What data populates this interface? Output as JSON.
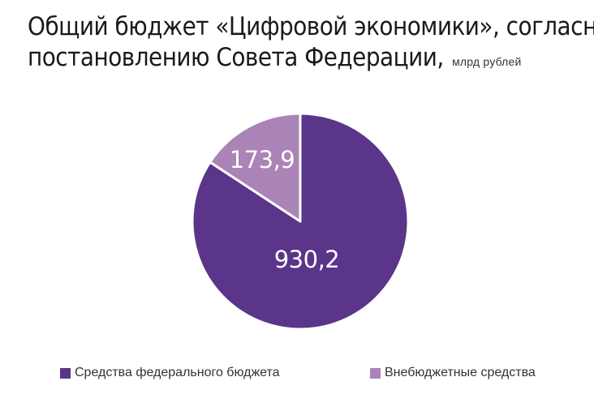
{
  "chart_data": {
    "type": "pie",
    "title": "Общий бюджет «Цифровой экономики», согласно постановлению Совета Федерации",
    "title_line1": "Общий бюджет «Цифровой экономики», согласно",
    "title_line2": "постановлению Совета Федерации,",
    "unit": "млрд рублей",
    "slices": [
      {
        "label": "Средства федерального бюджета",
        "value": 930.2,
        "value_label": "930,2",
        "color": "#5a3589"
      },
      {
        "label": "Внебюджетные средства",
        "value": 173.9,
        "value_label": "173,9",
        "color": "#ab84b7"
      }
    ],
    "legend_position": "bottom"
  }
}
